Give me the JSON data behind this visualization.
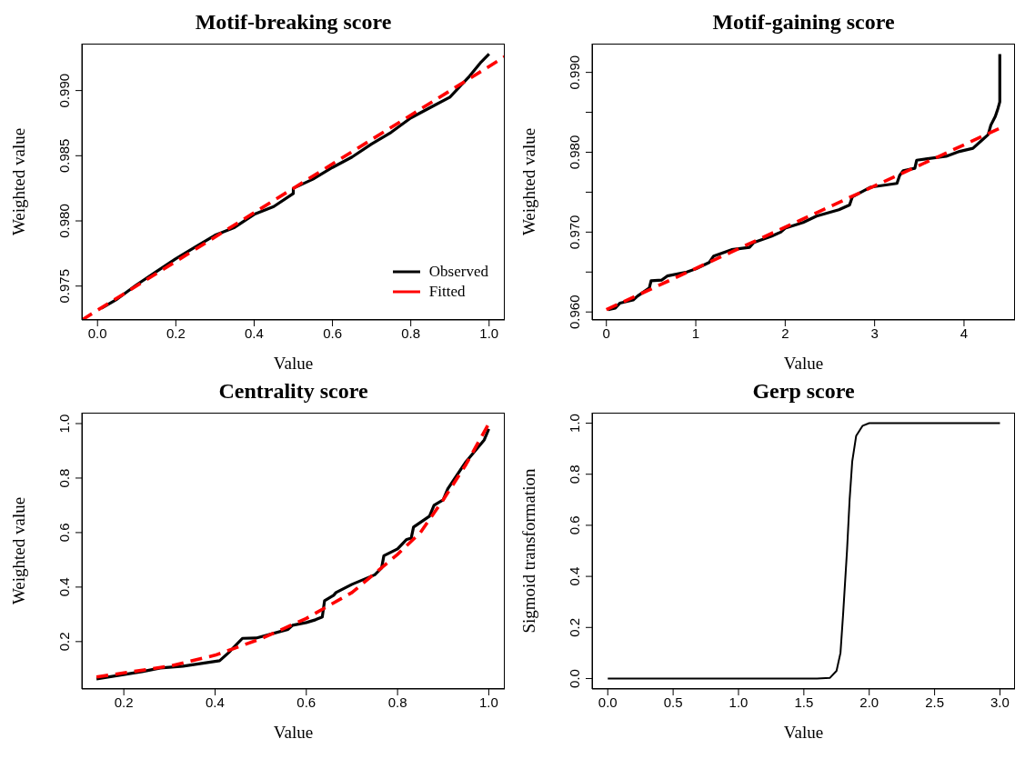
{
  "chart_data": [
    {
      "type": "line",
      "title": "Motif-breaking score",
      "xlabel": "Value",
      "ylabel": "Weighted value",
      "legend": "bottom right",
      "xlim": [
        -0.04,
        1.04
      ],
      "ylim": [
        0.9724,
        0.9936
      ],
      "xticks": [
        {
          "value": 0,
          "label": "0.0"
        },
        0.2,
        0.4,
        0.6,
        0.8,
        {
          "value": 1,
          "label": "1.0"
        }
      ],
      "yticks": [
        0.975,
        {
          "value": 0.98,
          "label": "0.980"
        },
        0.985,
        {
          "value": 0.99,
          "label": "0.990"
        }
      ],
      "series": [
        {
          "name": "Observed",
          "color": "#000000",
          "line_style": "solid",
          "x": [
            0.01,
            0.05,
            0.1,
            0.15,
            0.2,
            0.25,
            0.3,
            0.35,
            0.4,
            0.45,
            0.5,
            0.5,
            0.55,
            0.6,
            0.65,
            0.7,
            0.75,
            0.8,
            0.85,
            0.9,
            0.95,
            0.98,
            1.0
          ],
          "values": [
            0.9733,
            0.974,
            0.9751,
            0.9761,
            0.9771,
            0.978,
            0.9789,
            0.9795,
            0.9805,
            0.9811,
            0.9821,
            0.9825,
            0.9832,
            0.9841,
            0.9849,
            0.9859,
            0.9868,
            0.9879,
            0.9887,
            0.9895,
            0.9911,
            0.9922,
            0.9928
          ]
        },
        {
          "name": "Fitted",
          "color": "#ff0000",
          "line_style": "dashed",
          "x": [
            -0.04,
            1.04
          ],
          "values": [
            0.9724,
            0.9926
          ]
        }
      ]
    },
    {
      "type": "line",
      "title": "Motif-gaining score",
      "xlabel": "Value",
      "ylabel": "Weighted value",
      "xlim": [
        -0.16,
        4.57
      ],
      "ylim": [
        0.959,
        0.9936
      ],
      "xticks": [
        0,
        1,
        2,
        3,
        4
      ],
      "yticks": [
        {
          "value": 0.96,
          "label": "0.960"
        },
        {
          "value": 0.965,
          "label": null
        },
        {
          "value": 0.97,
          "label": "0.970"
        },
        {
          "value": 0.975,
          "label": null
        },
        {
          "value": 0.98,
          "label": "0.980"
        },
        {
          "value": 0.985,
          "label": null
        },
        {
          "value": 0.99,
          "label": "0.990"
        }
      ],
      "series": [
        {
          "color": "#000000",
          "line_style": "solid",
          "x": [
            0.02,
            0.1,
            0.15,
            0.3,
            0.35,
            0.48,
            0.5,
            0.62,
            0.68,
            0.9,
            1.0,
            1.15,
            1.2,
            1.4,
            1.6,
            1.65,
            1.85,
            1.95,
            2.0,
            2.2,
            2.35,
            2.6,
            2.72,
            2.75,
            2.95,
            3.0,
            3.25,
            3.28,
            3.32,
            3.45,
            3.47,
            3.8,
            3.95,
            4.1,
            4.2,
            4.27,
            4.3,
            4.35,
            4.38,
            4.4,
            4.4
          ],
          "values": [
            0.9603,
            0.9605,
            0.9611,
            0.9615,
            0.962,
            0.963,
            0.9639,
            0.964,
            0.9645,
            0.965,
            0.9654,
            0.9662,
            0.967,
            0.9678,
            0.9681,
            0.9687,
            0.9695,
            0.97,
            0.9705,
            0.9712,
            0.972,
            0.9728,
            0.9734,
            0.9744,
            0.9756,
            0.9757,
            0.9761,
            0.9771,
            0.9777,
            0.978,
            0.979,
            0.9795,
            0.9801,
            0.9805,
            0.9815,
            0.9822,
            0.9834,
            0.9845,
            0.9855,
            0.9863,
            0.9923
          ]
        },
        {
          "color": "#ff0000",
          "line_style": "dashed",
          "x": [
            0,
            4.4
          ],
          "values": [
            0.9603,
            0.983
          ]
        }
      ]
    },
    {
      "type": "line",
      "title": "Centrality score",
      "xlabel": "Value",
      "ylabel": "Weighted value",
      "xlim": [
        0.108,
        1.035
      ],
      "ylim": [
        0.026,
        1.04
      ],
      "xticks": [
        0.2,
        0.4,
        0.6,
        0.8,
        {
          "value": 1,
          "label": "1.0"
        }
      ],
      "yticks": [
        0.2,
        0.4,
        0.6,
        0.8,
        {
          "value": 1,
          "label": "1.0"
        }
      ],
      "series": [
        {
          "color": "#000000",
          "line_style": "solid",
          "x": [
            0.14,
            0.24,
            0.28,
            0.33,
            0.41,
            0.43,
            0.46,
            0.49,
            0.56,
            0.57,
            0.6,
            0.62,
            0.635,
            0.64,
            0.66,
            0.665,
            0.7,
            0.75,
            0.765,
            0.77,
            0.8,
            0.82,
            0.83,
            0.835,
            0.87,
            0.88,
            0.9,
            0.91,
            0.95,
            0.99,
            1.0
          ],
          "values": [
            0.063,
            0.09,
            0.103,
            0.11,
            0.13,
            0.16,
            0.212,
            0.213,
            0.245,
            0.26,
            0.27,
            0.28,
            0.29,
            0.35,
            0.37,
            0.38,
            0.41,
            0.445,
            0.47,
            0.515,
            0.54,
            0.575,
            0.58,
            0.62,
            0.66,
            0.7,
            0.72,
            0.76,
            0.86,
            0.94,
            0.98
          ]
        },
        {
          "color": "#ff0000",
          "line_style": "dashed",
          "x": [
            0.14,
            0.2,
            0.3,
            0.4,
            0.5,
            0.6,
            0.7,
            0.8,
            0.85,
            0.9,
            0.95,
            1.0
          ],
          "values": [
            0.07,
            0.085,
            0.11,
            0.15,
            0.21,
            0.285,
            0.38,
            0.52,
            0.6,
            0.72,
            0.85,
            1.0
          ]
        }
      ]
    },
    {
      "type": "line",
      "title": "Gerp score",
      "xlabel": "Value",
      "ylabel": "Sigmoid transformation",
      "xlim": [
        -0.12,
        3.115
      ],
      "ylim": [
        -0.041,
        1.041
      ],
      "xticks": [
        {
          "value": 0,
          "label": "0.0"
        },
        0.5,
        {
          "value": 1,
          "label": "1.0"
        },
        1.5,
        {
          "value": 2,
          "label": "2.0"
        },
        2.5,
        {
          "value": 3,
          "label": "3.0"
        }
      ],
      "yticks": [
        {
          "value": 0,
          "label": "0.0"
        },
        0.2,
        0.4,
        0.6,
        0.8,
        {
          "value": 1,
          "label": "1.0"
        }
      ],
      "series": [
        {
          "color": "#000000",
          "line_style": "solid",
          "x": [
            0,
            1.6,
            1.7,
            1.75,
            1.78,
            1.8,
            1.83,
            1.85,
            1.87,
            1.9,
            1.95,
            2.0,
            3.0
          ],
          "values": [
            0,
            0,
            0.003,
            0.03,
            0.1,
            0.25,
            0.5,
            0.7,
            0.85,
            0.95,
            0.99,
            1.0,
            1.0
          ]
        }
      ]
    }
  ]
}
